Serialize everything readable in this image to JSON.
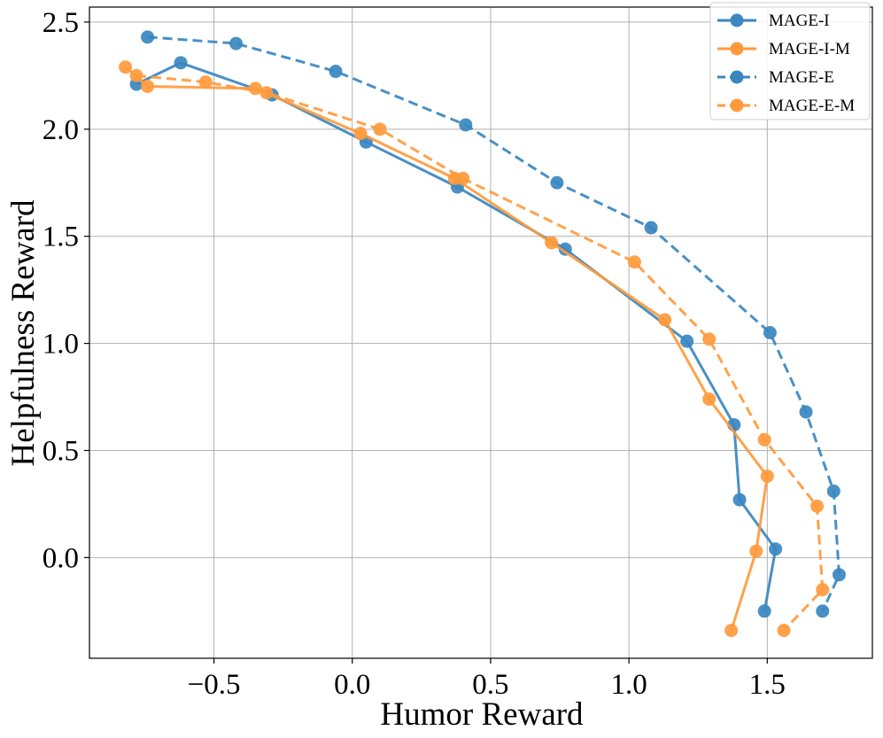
{
  "chart_data": {
    "type": "line",
    "title": "",
    "xlabel": "Humor Reward",
    "ylabel": "Helpfulness Reward",
    "xlim": [
      -0.95,
      1.88
    ],
    "ylim": [
      -0.47,
      2.57
    ],
    "xticks": [
      -0.5,
      0.0,
      0.5,
      1.0,
      1.5
    ],
    "xtick_labels": [
      "−0.5",
      "0.0",
      "0.5",
      "1.0",
      "1.5"
    ],
    "yticks": [
      0.0,
      0.5,
      1.0,
      1.5,
      2.0,
      2.5
    ],
    "ytick_labels": [
      "0.0",
      "0.5",
      "1.0",
      "1.5",
      "2.0",
      "2.5"
    ],
    "grid": true,
    "legend_position": "top-right",
    "series": [
      {
        "name": "MAGE-I",
        "color": "#3a87c0",
        "dash": "solid",
        "x": [
          -0.78,
          -0.62,
          -0.29,
          0.05,
          0.38,
          0.77,
          1.21,
          1.38,
          1.4,
          1.53,
          1.49
        ],
        "y": [
          2.21,
          2.31,
          2.16,
          1.94,
          1.73,
          1.44,
          1.01,
          0.62,
          0.27,
          0.04,
          -0.25
        ]
      },
      {
        "name": "MAGE-I-M",
        "color": "#ff9a3c",
        "dash": "solid",
        "x": [
          -0.82,
          -0.74,
          -0.35,
          0.03,
          0.37,
          0.72,
          1.13,
          1.29,
          1.5,
          1.46,
          1.37
        ],
        "y": [
          2.29,
          2.2,
          2.19,
          1.98,
          1.77,
          1.47,
          1.11,
          0.74,
          0.38,
          0.03,
          -0.34
        ]
      },
      {
        "name": "MAGE-E",
        "color": "#3a87c0",
        "dash": "dashed",
        "x": [
          -0.74,
          -0.42,
          -0.06,
          0.41,
          0.74,
          1.08,
          1.51,
          1.64,
          1.74,
          1.76,
          1.7
        ],
        "y": [
          2.43,
          2.4,
          2.27,
          2.02,
          1.75,
          1.54,
          1.05,
          0.68,
          0.31,
          -0.08,
          -0.25
        ]
      },
      {
        "name": "MAGE-E-M",
        "color": "#ff9a3c",
        "dash": "dashed",
        "x": [
          -0.78,
          -0.53,
          -0.31,
          0.1,
          0.4,
          1.02,
          1.29,
          1.49,
          1.68,
          1.7,
          1.56
        ],
        "y": [
          2.25,
          2.22,
          2.17,
          2.0,
          1.77,
          1.38,
          1.02,
          0.55,
          0.24,
          -0.15,
          -0.34
        ]
      }
    ]
  }
}
